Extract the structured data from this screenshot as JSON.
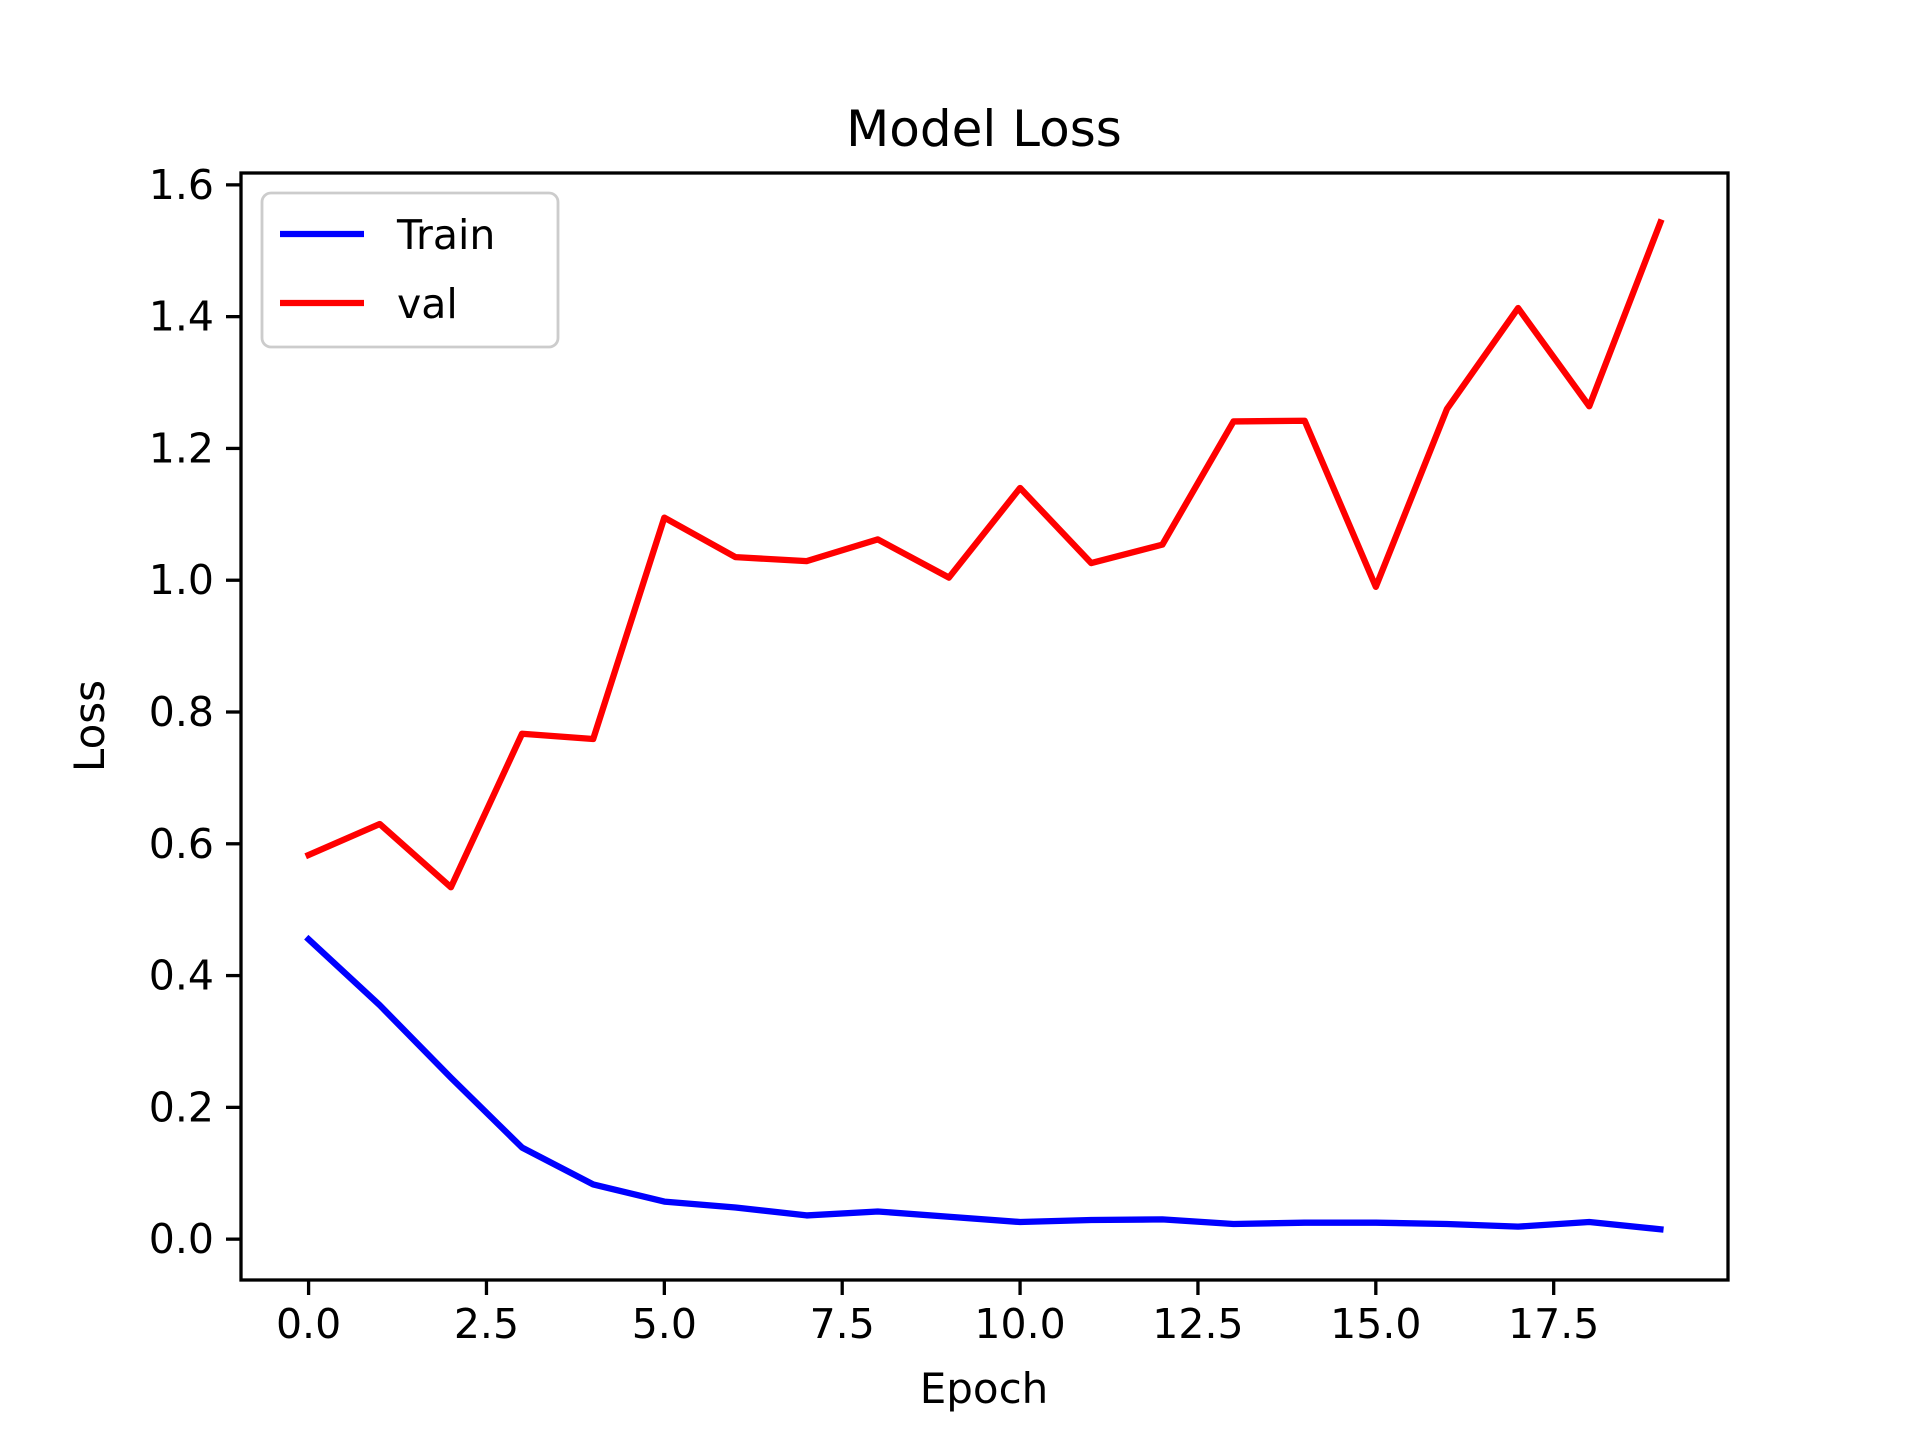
{
  "figure": {
    "background": "#ffffff",
    "axis_color": "#000000"
  },
  "chart_data": {
    "type": "line",
    "title": "Model Loss",
    "xlabel": "Epoch",
    "ylabel": "Loss",
    "grid": false,
    "xlim": [
      -0.95,
      19.95
    ],
    "ylim": [
      -0.062,
      1.618
    ],
    "x": [
      0,
      1,
      2,
      3,
      4,
      5,
      6,
      7,
      8,
      9,
      10,
      11,
      12,
      13,
      14,
      15,
      16,
      17,
      18,
      19
    ],
    "series": [
      {
        "name": "Train",
        "color": "#0000ff",
        "values": [
          0.455,
          0.355,
          0.245,
          0.139,
          0.083,
          0.057,
          0.048,
          0.036,
          0.042,
          0.034,
          0.026,
          0.029,
          0.03,
          0.023,
          0.025,
          0.025,
          0.023,
          0.019,
          0.026,
          0.015
        ]
      },
      {
        "name": "val",
        "color": "#ff0000",
        "values": [
          0.583,
          0.63,
          0.534,
          0.767,
          0.759,
          1.095,
          1.035,
          1.029,
          1.062,
          1.004,
          1.14,
          1.026,
          1.054,
          1.241,
          1.242,
          0.99,
          1.26,
          1.413,
          1.264,
          1.543
        ]
      }
    ],
    "legend": {
      "position": "upper left",
      "entries": [
        "Train",
        "val"
      ],
      "border_color": "#cccccc",
      "background": "#ffffff"
    },
    "x_ticks": {
      "values": [
        0.0,
        2.5,
        5.0,
        7.5,
        10.0,
        12.5,
        15.0,
        17.5
      ],
      "labels": [
        "0.0",
        "2.5",
        "5.0",
        "7.5",
        "10.0",
        "12.5",
        "15.0",
        "17.5"
      ]
    },
    "y_ticks": {
      "values": [
        0.0,
        0.2,
        0.4,
        0.6,
        0.8,
        1.0,
        1.2,
        1.4,
        1.6
      ],
      "labels": [
        "0.0",
        "0.2",
        "0.4",
        "0.6",
        "0.8",
        "1.0",
        "1.2",
        "1.4",
        "1.6"
      ]
    }
  }
}
